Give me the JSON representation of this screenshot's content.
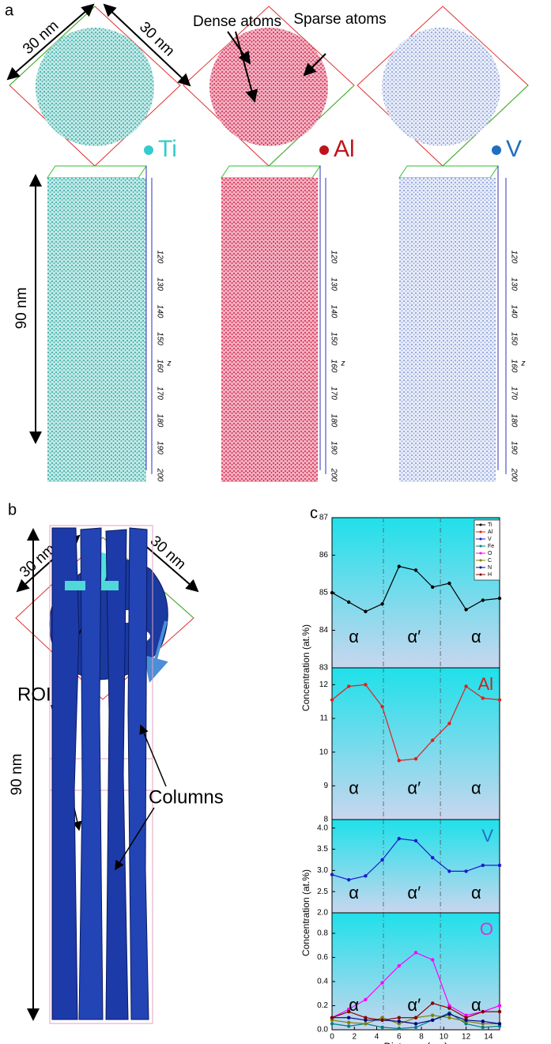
{
  "figure": {
    "panel_a": {
      "label": "a",
      "scale_labels": [
        "30 nm",
        "30 nm"
      ],
      "annotations": [
        "Dense atoms",
        "Sparse atoms"
      ],
      "elements": [
        {
          "name": "Ti",
          "color": "#33cccc"
        },
        {
          "name": "Al",
          "color": "#c0141c"
        },
        {
          "name": "V",
          "color": "#1f6fbf"
        }
      ],
      "height_label": "90 nm",
      "z_ticks": [
        "120",
        "130",
        "140",
        "150",
        "160",
        "170",
        "180",
        "190",
        "200"
      ],
      "z_label": "z"
    },
    "panel_b": {
      "label": "b",
      "scale_labels": [
        "30 nm",
        "30 nm"
      ],
      "roi_label": "ROI",
      "columns_label": "Columns",
      "height_label": "90 nm"
    },
    "panel_c": {
      "label": "c"
    }
  },
  "chart_data": [
    {
      "type": "line",
      "label": "Ti",
      "label_color": "#111111",
      "ylabel": "Concentration (at.%)",
      "x": [
        0,
        1.5,
        3,
        4.5,
        6,
        7.5,
        9,
        10.5,
        12,
        13.5,
        15
      ],
      "xlim": [
        0,
        15
      ],
      "ylim": [
        83,
        87
      ],
      "yticks": [
        83,
        84,
        85,
        86,
        87
      ],
      "vlines": [
        4.6,
        9.7
      ],
      "annotations": [
        "α",
        "α′",
        "α"
      ],
      "series": [
        {
          "name": "Ti",
          "color": "#000000",
          "values": [
            85.0,
            84.75,
            84.5,
            84.7,
            85.7,
            85.6,
            85.15,
            85.25,
            84.55,
            84.8,
            84.85
          ]
        }
      ],
      "legend": [
        "Ti",
        "Al",
        "V",
        "Fe",
        "O",
        "C",
        "N",
        "H"
      ],
      "legend_colors": [
        "#000000",
        "#e0201b",
        "#1a1ad0",
        "#008080",
        "#ff00ff",
        "#808000",
        "#000080",
        "#800000"
      ]
    },
    {
      "type": "line",
      "label": "Al",
      "label_color": "#d02020",
      "x": [
        0,
        1.5,
        3,
        4.5,
        6,
        7.5,
        9,
        10.5,
        12,
        13.5,
        15
      ],
      "xlim": [
        0,
        15
      ],
      "ylim": [
        8,
        12.5
      ],
      "yticks": [
        8,
        9,
        10,
        11,
        12
      ],
      "vlines": [
        4.6,
        9.7
      ],
      "annotations": [
        "α",
        "α′",
        "α"
      ],
      "series": [
        {
          "name": "Al",
          "color": "#e0201b",
          "values": [
            11.55,
            11.95,
            12.0,
            11.35,
            9.75,
            9.8,
            10.35,
            10.85,
            11.95,
            11.6,
            11.55
          ]
        }
      ]
    },
    {
      "type": "line",
      "label": "V",
      "label_color": "#1f6fc0",
      "ylabel": "Concentration (at.%)",
      "x": [
        0,
        1.5,
        3,
        4.5,
        6,
        7.5,
        9,
        10.5,
        12,
        13.5,
        15
      ],
      "xlim": [
        0,
        15
      ],
      "ylim": [
        2,
        4.2
      ],
      "yticks": [
        {
          "value": 2,
          "label": "2.0"
        },
        2.5,
        {
          "value": 3,
          "label": "3.0"
        },
        3.5,
        {
          "value": 4,
          "label": "4.0"
        }
      ],
      "vlines": [
        4.6,
        9.7
      ],
      "annotations": [
        "α",
        "α′",
        "α"
      ],
      "series": [
        {
          "name": "V",
          "color": "#1a1ad0",
          "values": [
            2.9,
            2.78,
            2.87,
            3.25,
            3.75,
            3.7,
            3.3,
            2.98,
            2.98,
            3.12,
            3.12
          ]
        }
      ]
    },
    {
      "type": "line",
      "label": "O",
      "label_color": "#e030d0",
      "xlabel": "Distance (nm)",
      "x": [
        0,
        1.5,
        3,
        4.5,
        6,
        7.5,
        9,
        10.5,
        12,
        13.5,
        15
      ],
      "xlim": [
        0,
        15
      ],
      "ylim": [
        0,
        0.97
      ],
      "yticks": [
        {
          "value": 0,
          "label": "0.0"
        },
        0.2,
        0.4,
        0.6,
        0.8
      ],
      "xticks": [
        0,
        2,
        4,
        6,
        8,
        10,
        12,
        14
      ],
      "vlines": [
        4.6,
        9.7
      ],
      "annotations": [
        "α",
        "α′",
        "α"
      ],
      "series": [
        {
          "name": "O",
          "color": "#ff00ff",
          "values": [
            0.1,
            0.17,
            0.25,
            0.39,
            0.53,
            0.64,
            0.58,
            0.2,
            0.12,
            0.15,
            0.2
          ]
        },
        {
          "name": "Fe",
          "color": "#008080",
          "values": [
            0.05,
            0.03,
            0.05,
            0.02,
            0.01,
            0.02,
            0.08,
            0.14,
            0.05,
            0.02,
            0.03
          ]
        },
        {
          "name": "C",
          "color": "#808000",
          "values": [
            0.08,
            0.06,
            0.05,
            0.1,
            0.05,
            0.1,
            0.12,
            0.1,
            0.07,
            0.05,
            0.05
          ]
        },
        {
          "name": "N",
          "color": "#000080",
          "values": [
            0.1,
            0.1,
            0.08,
            0.08,
            0.07,
            0.05,
            0.08,
            0.13,
            0.08,
            0.07,
            0.05
          ]
        },
        {
          "name": "H",
          "color": "#800000",
          "values": [
            0.1,
            0.15,
            0.1,
            0.08,
            0.1,
            0.1,
            0.22,
            0.18,
            0.1,
            0.15,
            0.15
          ]
        }
      ]
    }
  ]
}
